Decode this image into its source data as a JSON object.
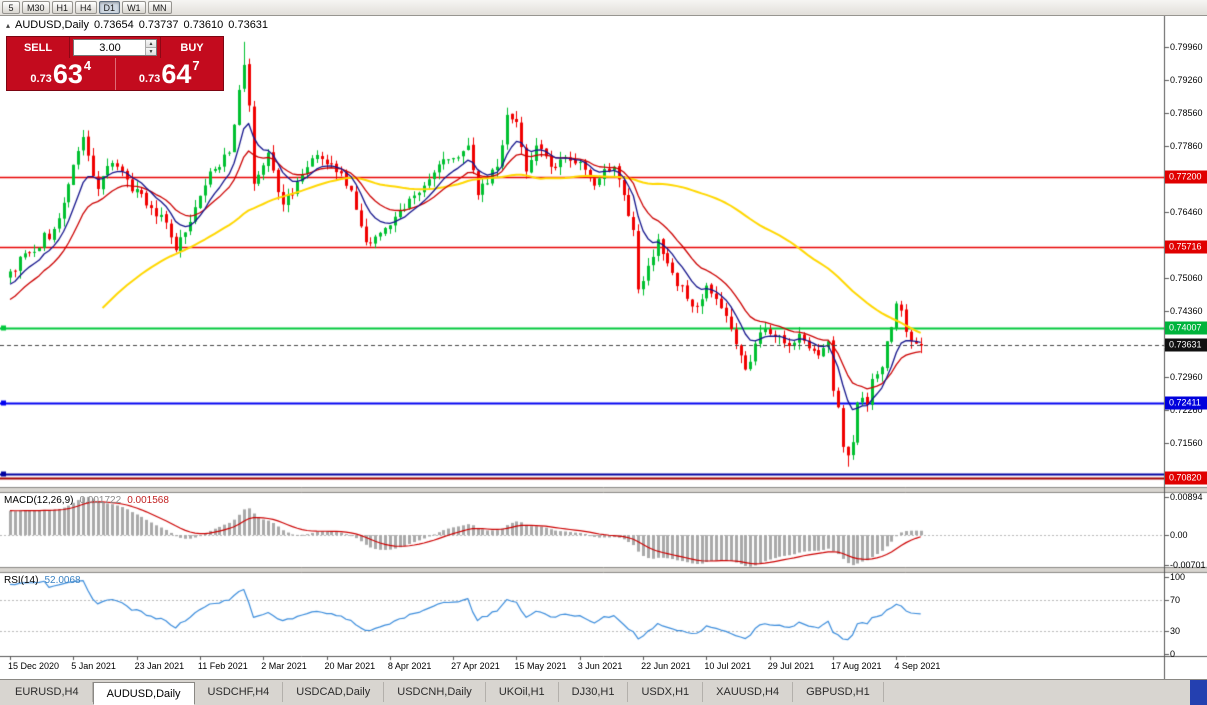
{
  "toolbar": {
    "timeframes": [
      {
        "label": "5",
        "active": false
      },
      {
        "label": "M30",
        "active": false
      },
      {
        "label": "H1",
        "active": false
      },
      {
        "label": "H4",
        "active": false
      },
      {
        "label": "D1",
        "active": true
      },
      {
        "label": "W1",
        "active": false
      },
      {
        "label": "MN",
        "active": false
      }
    ]
  },
  "header": {
    "toggle_glyph": "▴",
    "symbol": "AUDUSD,Daily",
    "open": "0.73654",
    "high": "0.73737",
    "low": "0.73610",
    "close": "0.73631"
  },
  "trade_panel": {
    "sell_label": "SELL",
    "buy_label": "BUY",
    "volume": "3.00",
    "spin_up_glyph": "▲",
    "spin_down_glyph": "▼",
    "sell_small": "0.73",
    "sell_big": "63",
    "sell_sup": "4",
    "buy_small": "0.73",
    "buy_big": "64",
    "buy_sup": "7"
  },
  "macd": {
    "label": "MACD(12,26,9)",
    "value_main": "0.001722",
    "value_signal": "0.001568",
    "range": {
      "max": 0.00894,
      "min": -0.00701
    },
    "axis_labels": [
      {
        "v": 0.00894,
        "t": "0.00894"
      },
      {
        "v": 0,
        "t": "0.00"
      },
      {
        "v": -0.00701,
        "t": "-0.00701"
      }
    ]
  },
  "rsi": {
    "label": "RSI(14)",
    "value": "52.0068",
    "period": 14,
    "levels": [
      70,
      30
    ],
    "axis_labels": [
      {
        "v": 100,
        "t": "100"
      },
      {
        "v": 70,
        "t": "70"
      },
      {
        "v": 30,
        "t": "30"
      },
      {
        "v": 0,
        "t": "0"
      }
    ]
  },
  "price_axis": {
    "gridline_labels": [
      {
        "v": 0.7996,
        "t": "0.79960"
      },
      {
        "v": 0.7926,
        "t": "0.79260"
      },
      {
        "v": 0.7856,
        "t": "0.78560"
      },
      {
        "v": 0.7786,
        "t": "0.77860"
      },
      {
        "v": 0.7646,
        "t": "0.76460"
      },
      {
        "v": 0.7506,
        "t": "0.75060"
      },
      {
        "v": 0.7436,
        "t": "0.74360"
      },
      {
        "v": 0.7296,
        "t": "0.72960"
      },
      {
        "v": 0.7226,
        "t": "0.72260"
      },
      {
        "v": 0.7156,
        "t": "0.71560"
      }
    ],
    "badges": [
      {
        "v": 0.772,
        "t": "0.77200",
        "bg": "#e00000",
        "name": "price-level-badge-0-77200"
      },
      {
        "v": 0.75716,
        "t": "0.75716",
        "bg": "#e00000",
        "name": "price-level-badge-0-75716"
      },
      {
        "v": 0.74007,
        "t": "0.74007",
        "bg": "#00b43c",
        "name": "price-level-badge-0-74007"
      },
      {
        "v": 0.73631,
        "t": "0.73631",
        "bg": "#101010",
        "name": "current-price-badge"
      },
      {
        "v": 0.72411,
        "t": "0.72411",
        "bg": "#0000dc",
        "name": "price-level-badge-0-72411"
      },
      {
        "v": 0.7082,
        "t": "0.70820",
        "bg": "#e00000",
        "name": "price-level-badge-0-70820"
      }
    ]
  },
  "tabs": {
    "items": [
      {
        "label": "EURUSD,H4",
        "active": false
      },
      {
        "label": "AUDUSD,Daily",
        "active": true
      },
      {
        "label": "USDCHF,H4",
        "active": false
      },
      {
        "label": "USDCAD,Daily",
        "active": false
      },
      {
        "label": "USDCNH,Daily",
        "active": false
      },
      {
        "label": "UKOil,H1",
        "active": false
      },
      {
        "label": "DJ30,H1",
        "active": false
      },
      {
        "label": "USDX,H1",
        "active": false
      },
      {
        "label": "XAUUSD,H4",
        "active": false
      },
      {
        "label": "GBPUSD,H1",
        "active": false
      }
    ]
  },
  "chart_data": {
    "type": "candlestick",
    "symbol": "AUDUSD",
    "timeframe": "Daily",
    "visible_price_range": [
      0.7082,
      0.7996
    ],
    "current": {
      "open": 0.73654,
      "high": 0.73737,
      "low": 0.7361,
      "close": 0.73631
    },
    "colors": {
      "up": "#00c030",
      "down": "#f00000",
      "macd_hist": "#a9a9a9",
      "macd_signal": "#cc0000",
      "rsi": "#3c8ddc"
    },
    "horizontal_levels": [
      {
        "price": 0.772,
        "color": "#e80000",
        "width": 1.4,
        "selected": false
      },
      {
        "price": 0.75716,
        "color": "#e80000",
        "width": 1.4,
        "selected": false
      },
      {
        "price": 0.74007,
        "color": "#00c83c",
        "width": 2,
        "selected": true
      },
      {
        "price": 0.72411,
        "color": "#0000f0",
        "width": 2,
        "selected": true
      },
      {
        "price": 0.709,
        "color": "#0000a0",
        "width": 2,
        "selected": true
      },
      {
        "price": 0.7082,
        "color": "#a00000",
        "width": 2,
        "selected": false
      }
    ],
    "moving_averages": [
      {
        "type": "sma",
        "period": 60,
        "color": "#ffd700",
        "width": 2
      },
      {
        "type": "ema",
        "period": 16,
        "color": "#cc0000",
        "width": 1.3
      },
      {
        "type": "ema",
        "period": 8,
        "color": "#14148c",
        "width": 1.3
      }
    ],
    "last_index": 187,
    "seed": 11,
    "noise": 0.0012,
    "wick": 0.0017,
    "overrides": {
      "15": {
        "high": 0.782
      },
      "48": {
        "high": 0.8007
      },
      "172": {
        "low": 0.7106
      }
    },
    "candles_pivots": [
      [
        -40,
        0.714
      ],
      [
        -25,
        0.7305
      ],
      [
        -12,
        0.7432
      ],
      [
        0,
        0.752
      ],
      [
        4,
        0.756
      ],
      [
        9,
        0.761
      ],
      [
        12,
        0.7705
      ],
      [
        15,
        0.7805
      ],
      [
        18,
        0.7695
      ],
      [
        21,
        0.775
      ],
      [
        24,
        0.7715
      ],
      [
        28,
        0.766
      ],
      [
        31,
        0.764
      ],
      [
        34,
        0.7565
      ],
      [
        37,
        0.7625
      ],
      [
        41,
        0.7732
      ],
      [
        45,
        0.7772
      ],
      [
        47,
        0.7905
      ],
      [
        48,
        0.7958
      ],
      [
        49,
        0.7872
      ],
      [
        50,
        0.7706
      ],
      [
        53,
        0.7772
      ],
      [
        56,
        0.7662
      ],
      [
        60,
        0.7725
      ],
      [
        63,
        0.7767
      ],
      [
        66,
        0.7747
      ],
      [
        70,
        0.7692
      ],
      [
        73,
        0.7582
      ],
      [
        77,
        0.7612
      ],
      [
        81,
        0.7652
      ],
      [
        85,
        0.7702
      ],
      [
        88,
        0.7747
      ],
      [
        92,
        0.7762
      ],
      [
        94,
        0.7787
      ],
      [
        96,
        0.7682
      ],
      [
        100,
        0.7742
      ],
      [
        102,
        0.7852
      ],
      [
        104,
        0.7837
      ],
      [
        106,
        0.7732
      ],
      [
        108,
        0.7787
      ],
      [
        111,
        0.7742
      ],
      [
        114,
        0.7762
      ],
      [
        117,
        0.7752
      ],
      [
        120,
        0.7702
      ],
      [
        122,
        0.7737
      ],
      [
        124,
        0.7742
      ],
      [
        126,
        0.7682
      ],
      [
        128,
        0.7608
      ],
      [
        129,
        0.7482
      ],
      [
        131,
        0.7532
      ],
      [
        133,
        0.7588
      ],
      [
        136,
        0.7517
      ],
      [
        139,
        0.7462
      ],
      [
        141,
        0.7447
      ],
      [
        143,
        0.749
      ],
      [
        146,
        0.7442
      ],
      [
        148,
        0.7398
      ],
      [
        150,
        0.7342
      ],
      [
        151,
        0.7312
      ],
      [
        153,
        0.7367
      ],
      [
        155,
        0.7398
      ],
      [
        157,
        0.7382
      ],
      [
        160,
        0.7362
      ],
      [
        162,
        0.7388
      ],
      [
        164,
        0.7357
      ],
      [
        166,
        0.7342
      ],
      [
        168,
        0.7372
      ],
      [
        169,
        0.7267
      ],
      [
        170,
        0.7232
      ],
      [
        171,
        0.7148
      ],
      [
        172,
        0.713
      ],
      [
        173,
        0.7158
      ],
      [
        174,
        0.7242
      ],
      [
        175,
        0.7252
      ],
      [
        176,
        0.7237
      ],
      [
        177,
        0.7292
      ],
      [
        178,
        0.7302
      ],
      [
        179,
        0.7317
      ],
      [
        180,
        0.7372
      ],
      [
        181,
        0.7402
      ],
      [
        182,
        0.7452
      ],
      [
        183,
        0.7437
      ],
      [
        184,
        0.7392
      ],
      [
        185,
        0.7372
      ],
      [
        186,
        0.7367
      ],
      [
        187,
        0.7363
      ]
    ],
    "date_labels": [
      {
        "i": 0,
        "t": "15 Dec 2020"
      },
      {
        "i": 13,
        "t": "5 Jan 2021"
      },
      {
        "i": 26,
        "t": "23 Jan 2021"
      },
      {
        "i": 39,
        "t": "11 Feb 2021"
      },
      {
        "i": 52,
        "t": "2 Mar 2021"
      },
      {
        "i": 65,
        "t": "20 Mar 2021"
      },
      {
        "i": 78,
        "t": "8 Apr 2021"
      },
      {
        "i": 91,
        "t": "27 Apr 2021"
      },
      {
        "i": 104,
        "t": "15 May 2021"
      },
      {
        "i": 117,
        "t": "3 Jun 2021"
      },
      {
        "i": 130,
        "t": "22 Jun 2021"
      },
      {
        "i": 143,
        "t": "10 Jul 2021"
      },
      {
        "i": 156,
        "t": "29 Jul 2021"
      },
      {
        "i": 169,
        "t": "17 Aug 2021"
      },
      {
        "i": 182,
        "t": "4 Sep 2021"
      }
    ]
  }
}
